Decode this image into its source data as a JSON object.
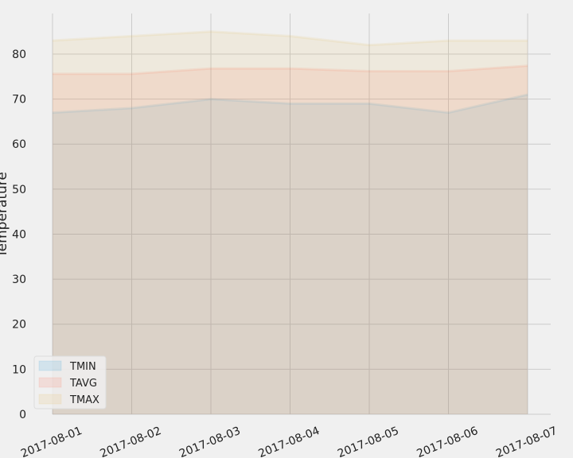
{
  "chart_data": {
    "type": "area",
    "title": "",
    "xlabel": "",
    "ylabel": "Temperature",
    "x": [
      "2017-08-01",
      "2017-08-02",
      "2017-08-03",
      "2017-08-04",
      "2017-08-05",
      "2017-08-06",
      "2017-08-07"
    ],
    "series": [
      {
        "name": "TMIN",
        "values": [
          67.0,
          68.0,
          70.0,
          69.0,
          69.0,
          67.0,
          71.0
        ],
        "color": "#008fd5"
      },
      {
        "name": "TAVG",
        "values": [
          75.6,
          75.6,
          76.8,
          76.8,
          76.2,
          76.2,
          77.4
        ],
        "color": "#fc4f30"
      },
      {
        "name": "TMAX",
        "values": [
          83.0,
          84.0,
          85.0,
          84.0,
          82.0,
          83.0,
          83.0
        ],
        "color": "#e5ae38"
      }
    ],
    "ylim": [
      0,
      89
    ],
    "yticks": [
      0,
      10,
      20,
      30,
      40,
      50,
      60,
      70,
      80
    ],
    "grid": true,
    "legend": "lower-left",
    "stacked": false
  }
}
